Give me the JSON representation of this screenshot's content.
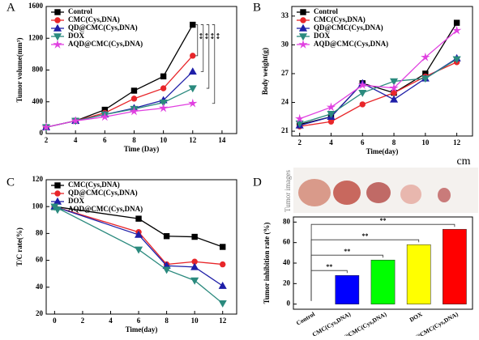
{
  "chart_data": [
    {
      "type": "line",
      "label": "A",
      "xlabel": "Time (Day)",
      "ylabel": "Tumor volume(mm³)",
      "x": [
        2,
        4,
        6,
        8,
        10,
        12
      ],
      "xlim": [
        2,
        15
      ],
      "xticks": [
        2,
        4,
        6,
        8,
        10,
        12,
        14
      ],
      "ylim": [
        0,
        1600
      ],
      "yticks": [
        0,
        400,
        800,
        1200,
        1600
      ],
      "legend": "upper left",
      "series": [
        {
          "name": "Control",
          "color": "#000000",
          "marker": "square",
          "values": [
            80,
            160,
            300,
            540,
            720,
            1370
          ]
        },
        {
          "name": "CMC(Cys,DNA)",
          "color": "#e8262a",
          "marker": "circle",
          "values": [
            80,
            160,
            260,
            440,
            570,
            980
          ]
        },
        {
          "name": "QD@CMC(Cys,DNA)",
          "color": "#1f1fa8",
          "marker": "triangle-up",
          "values": [
            80,
            160,
            240,
            320,
            420,
            780
          ]
        },
        {
          "name": "DOX",
          "color": "#2b8a7e",
          "marker": "triangle-down",
          "values": [
            80,
            160,
            240,
            310,
            390,
            570
          ]
        },
        {
          "name": "AQD@CMC(Cys,DNA)",
          "color": "#e040e0",
          "marker": "star",
          "values": [
            80,
            160,
            210,
            280,
            320,
            380
          ]
        }
      ],
      "annotations": [
        "**",
        "**",
        "**",
        "**"
      ]
    },
    {
      "type": "line",
      "label": "B",
      "xlabel": "Time(day)",
      "ylabel": "Body weight(g)",
      "x": [
        2,
        4,
        6,
        8,
        10,
        12
      ],
      "xlim": [
        1.5,
        13
      ],
      "xticks": [
        2,
        4,
        6,
        8,
        10,
        12
      ],
      "ylim": [
        20.5,
        34
      ],
      "yticks": [
        21,
        24,
        27,
        30,
        33
      ],
      "legend": "upper left",
      "series": [
        {
          "name": "Control",
          "color": "#000000",
          "marker": "square",
          "values": [
            21.7,
            22.5,
            26.0,
            25.0,
            27.0,
            32.3
          ]
        },
        {
          "name": "CMC(Cys,DNA)",
          "color": "#e8262a",
          "marker": "circle",
          "values": [
            21.5,
            22.0,
            23.8,
            25.0,
            26.7,
            28.2
          ]
        },
        {
          "name": "QD@CMC(Cys,DNA)",
          "color": "#1f1fa8",
          "marker": "triangle-up",
          "values": [
            21.6,
            22.5,
            26.0,
            24.3,
            26.5,
            28.6
          ]
        },
        {
          "name": "DOX",
          "color": "#2b8a7e",
          "marker": "triangle-down",
          "values": [
            21.8,
            22.8,
            25.0,
            26.2,
            26.5,
            28.5
          ]
        },
        {
          "name": "AQD@CMC(Cys,DNA)",
          "color": "#e040e0",
          "marker": "star",
          "values": [
            22.3,
            23.5,
            25.8,
            25.5,
            28.7,
            31.5
          ]
        }
      ]
    },
    {
      "type": "line",
      "label": "C",
      "xlabel": "Time(day)",
      "ylabel": "T/C rate(%)",
      "x": [
        0,
        6,
        8,
        10,
        12
      ],
      "xlim": [
        -0.6,
        13
      ],
      "xticks": [
        0,
        2,
        4,
        6,
        8,
        10,
        12
      ],
      "ylim": [
        20,
        120
      ],
      "yticks": [
        20,
        40,
        60,
        80,
        100,
        120
      ],
      "legend": "upper left",
      "series": [
        {
          "name": "CMC(Cys,DNA)",
          "color": "#000000",
          "marker": "square",
          "values": [
            100,
            91,
            78,
            77.5,
            70
          ]
        },
        {
          "name": "QD@CMC(Cys,DNA)",
          "color": "#e8262a",
          "marker": "circle",
          "values": [
            100,
            81,
            57,
            59,
            57
          ]
        },
        {
          "name": "DOX",
          "color": "#1f1fa8",
          "marker": "triangle-up",
          "values": [
            100,
            79,
            56,
            55,
            41
          ]
        },
        {
          "name": "AQD@CMC(Cys,DNA)",
          "color": "#2b8a7e",
          "marker": "triangle-down",
          "values": [
            100,
            68,
            53,
            45,
            28
          ]
        }
      ]
    },
    {
      "type": "bar",
      "label": "D",
      "ylabel": "Tumor inhibition rate (%)",
      "image_labels": [
        "Tumor images",
        "cm"
      ],
      "categories": [
        "Control",
        "CMC(Cys,DNA)",
        "QD@CMC(Cys,DNA)",
        "DOX",
        "AQD@CMC(Cys,DNA)"
      ],
      "values": [
        0,
        28,
        43,
        58,
        73
      ],
      "colors": [
        "#ff00ff",
        "#0000ff",
        "#00ff00",
        "#ffff00",
        "#ff0000"
      ],
      "ylim": [
        -5,
        85
      ],
      "yticks": [
        0,
        20,
        40,
        60,
        80
      ],
      "annotations": [
        "**",
        "**",
        "**",
        "**"
      ]
    }
  ]
}
